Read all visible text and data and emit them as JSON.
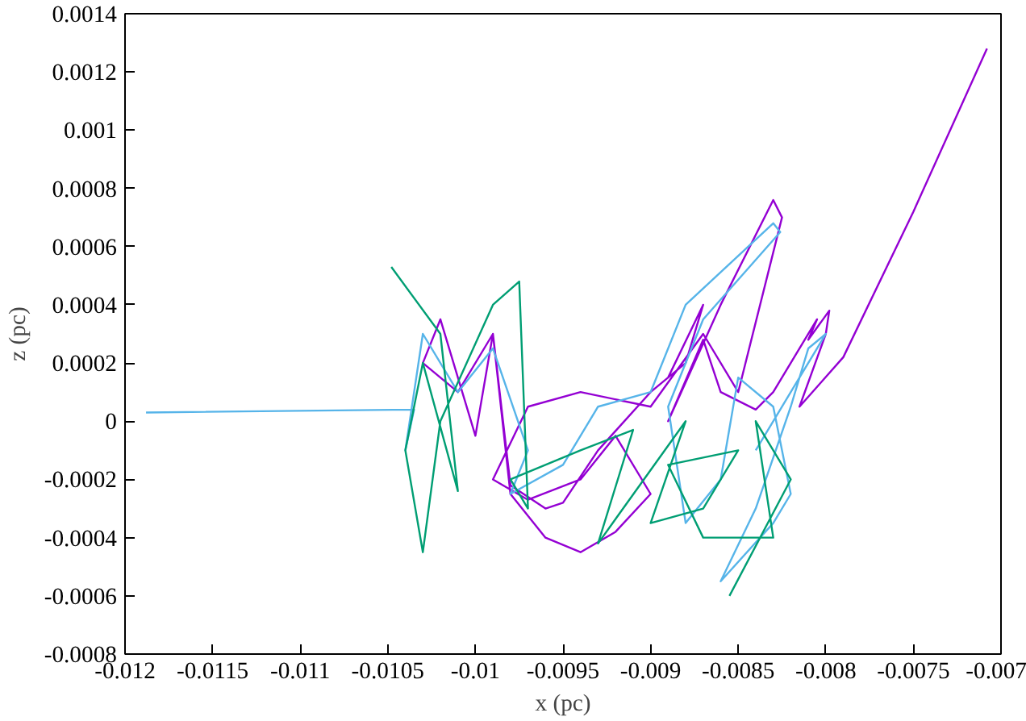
{
  "chart_data": {
    "type": "line",
    "xlabel": "x (pc)",
    "ylabel": "z (pc)",
    "xlim": [
      -0.012,
      -0.007
    ],
    "ylim": [
      -0.0008,
      0.0014
    ],
    "xticks": [
      -0.012,
      -0.0115,
      -0.011,
      -0.0105,
      -0.01,
      -0.0095,
      -0.009,
      -0.0085,
      -0.008,
      -0.0075,
      -0.007
    ],
    "yticks": [
      -0.0008,
      -0.0006,
      -0.0004,
      -0.0002,
      0,
      0.0002,
      0.0004,
      0.0006,
      0.0008,
      0.001,
      0.0012,
      0.0014
    ],
    "grid": false,
    "marker": "none",
    "line_style": "solid",
    "series": [
      {
        "color": "#9400d3",
        "x": [
          -0.00708,
          -0.0075,
          -0.0079,
          -0.00815,
          -0.008,
          -0.00798,
          -0.0081,
          -0.00805,
          -0.0083,
          -0.0084,
          -0.0086,
          -0.0087,
          -0.0089,
          -0.0086,
          -0.0083,
          -0.00825,
          -0.0085,
          -0.0087,
          -0.009,
          -0.0094,
          -0.0097,
          -0.0099,
          -0.0097,
          -0.0094,
          -0.0092,
          -0.009,
          -0.0092,
          -0.0094,
          -0.0096,
          -0.0098,
          -0.0099,
          -0.0101,
          -0.0103,
          -0.0102,
          -0.01,
          -0.0099,
          -0.0098,
          -0.0096,
          -0.0095,
          -0.0093,
          -0.009,
          -0.0088,
          -0.0087,
          -0.0089
        ],
        "values": [
          0.00128,
          0.00072,
          0.00022,
          5e-05,
          0.0003,
          0.00038,
          0.00028,
          0.00035,
          0.0001,
          4e-05,
          0.0001,
          0.00028,
          0.0,
          0.0004,
          0.00076,
          0.0007,
          0.0001,
          0.0003,
          5e-05,
          0.0001,
          5e-05,
          -0.0002,
          -0.00027,
          -0.0002,
          -5e-05,
          -0.00025,
          -0.00038,
          -0.00045,
          -0.0004,
          -0.00025,
          0.0003,
          0.0001,
          0.0002,
          0.00035,
          -5e-05,
          0.0003,
          -0.00022,
          -0.0003,
          -0.00028,
          -0.0001,
          0.0001,
          0.0002,
          0.0004,
          0.00015
        ]
      },
      {
        "color": "#56b4e9",
        "x": [
          -0.01188,
          -0.01035,
          -0.0104,
          -0.0103,
          -0.0101,
          -0.0099,
          -0.0097,
          -0.0098,
          -0.0095,
          -0.0093,
          -0.009,
          -0.0088,
          -0.0083,
          -0.00826,
          -0.0087,
          -0.0089,
          -0.0088,
          -0.0086,
          -0.0085,
          -0.0083,
          -0.0082,
          -0.0083,
          -0.0086,
          -0.0084,
          -0.0082,
          -0.0081,
          -0.008,
          -0.0082,
          -0.0084
        ],
        "values": [
          3e-05,
          4e-05,
          -0.0001,
          0.0003,
          0.0001,
          0.00025,
          -0.0001,
          -0.00025,
          -0.00015,
          5e-05,
          0.0001,
          0.0004,
          0.00068,
          0.00065,
          0.00035,
          5e-05,
          -0.00035,
          -0.0002,
          0.00015,
          5e-05,
          -0.00025,
          -0.00035,
          -0.00055,
          -0.0003,
          5e-05,
          0.00025,
          0.0003,
          0.0001,
          -0.0001
        ]
      },
      {
        "color": "#009e73",
        "x": [
          -0.01048,
          -0.0102,
          -0.0101,
          -0.0103,
          -0.0104,
          -0.0103,
          -0.0102,
          -0.0099,
          -0.00975,
          -0.0097,
          -0.0098,
          -0.0094,
          -0.0091,
          -0.0093,
          -0.0088,
          -0.009,
          -0.0087,
          -0.0085,
          -0.0089,
          -0.0087,
          -0.0083,
          -0.0084,
          -0.0082,
          -0.00855
        ],
        "values": [
          0.00053,
          0.0003,
          -0.00024,
          0.0002,
          -0.0001,
          -0.00045,
          0.0,
          0.0004,
          0.00048,
          -0.0003,
          -0.0002,
          -0.0001,
          -3e-05,
          -0.00042,
          0.0,
          -0.00035,
          -0.0003,
          -0.0001,
          -0.00015,
          -0.0004,
          -0.0004,
          0.0,
          -0.0002,
          -0.0006
        ]
      }
    ]
  }
}
